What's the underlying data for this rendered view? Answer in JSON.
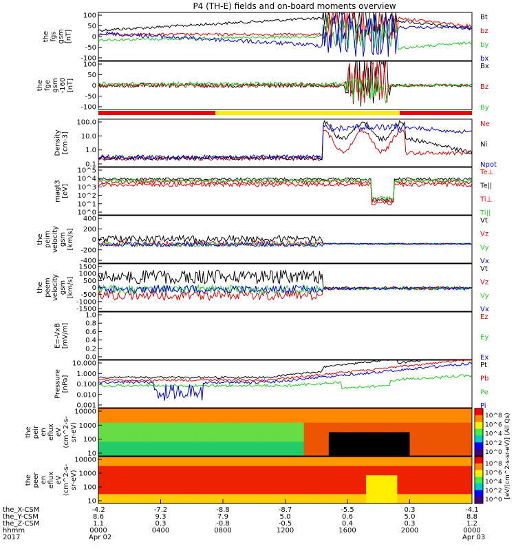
{
  "title": "P4 (TH-E) fields and on-board moments overview",
  "chart_data": {
    "type": "line",
    "title": "P4 (TH-E) fields and on-board moments overview",
    "panels": [
      {
        "id": "fgs",
        "ylabel": [
          "the",
          "fgs",
          "gsm",
          "[nT]"
        ],
        "yticks": [
          "100",
          "50",
          "0",
          "-50",
          "-100"
        ],
        "series": [
          {
            "name": "Bt",
            "color": "#000000"
          },
          {
            "name": "bz",
            "color": "#dd0000"
          },
          {
            "name": "by",
            "color": "#22cc22"
          },
          {
            "name": "bx",
            "color": "#0000dd"
          }
        ]
      },
      {
        "id": "fge",
        "ylabel": [
          "the",
          "fge",
          "gsm",
          "-160",
          "[nT]"
        ],
        "yticks": [
          "100",
          "50",
          "0",
          "-50",
          "-100"
        ],
        "series": [
          {
            "name": "Bx",
            "color": "#000000"
          },
          {
            "name": "Bz",
            "color": "#dd0000"
          },
          {
            "name": "By",
            "color": "#22cc22"
          }
        ]
      },
      {
        "id": "density",
        "ylabel": [
          "Density",
          "[cm-3]"
        ],
        "yticks": [
          "100.0",
          "10.0",
          "1.0",
          "0.1"
        ],
        "series": [
          {
            "name": "Ne",
            "color": "#dd0000"
          },
          {
            "name": "Ni",
            "color": "#000000"
          },
          {
            "name": "Npot",
            "color": "#0000dd"
          }
        ]
      },
      {
        "id": "temp",
        "ylabel": [
          "magt3",
          "[eV]"
        ],
        "yticks": [
          "10^5",
          "10^4",
          "10^3",
          "10^2",
          "10^1",
          "10^0"
        ],
        "series": [
          {
            "name": "Te⊥",
            "color": "#dd0000"
          },
          {
            "name": "Te||",
            "color": "#000000"
          },
          {
            "name": "Ti⊥",
            "color": "#dd0000"
          },
          {
            "name": "Ti||",
            "color": "#22cc22"
          }
        ]
      },
      {
        "id": "peim",
        "ylabel": [
          "the",
          "peim",
          "velocity",
          "gsm",
          "[km/s]"
        ],
        "yticks": [
          "400",
          "200",
          "0",
          "-200",
          "-400"
        ],
        "series": [
          {
            "name": "Vt",
            "color": "#000000"
          },
          {
            "name": "Vz",
            "color": "#dd0000"
          },
          {
            "name": "Vy",
            "color": "#22cc22"
          },
          {
            "name": "Vx",
            "color": "#0000dd"
          }
        ]
      },
      {
        "id": "peem",
        "ylabel": [
          "the",
          "peem",
          "velocity",
          "gsm",
          "[km/s]"
        ],
        "yticks": [
          "1500",
          "1000",
          "500",
          "0",
          "-500",
          "-1000",
          "-1500"
        ],
        "series": [
          {
            "name": "Vt",
            "color": "#000000"
          },
          {
            "name": "Vz",
            "color": "#dd0000"
          },
          {
            "name": "Vy",
            "color": "#22cc22"
          },
          {
            "name": "Vx",
            "color": "#0000dd"
          }
        ]
      },
      {
        "id": "efield",
        "ylabel": [
          "E=-VxB",
          "[mV/m]"
        ],
        "yticks": [
          "1.0",
          "0.8",
          "0.6",
          "0.4",
          "0.2",
          "0.0"
        ],
        "series": [
          {
            "name": "Ez",
            "color": "#dd0000"
          },
          {
            "name": "Ey",
            "color": "#22cc22"
          },
          {
            "name": "Ex",
            "color": "#0000dd"
          }
        ]
      },
      {
        "id": "pressure",
        "ylabel": [
          "Pressure",
          "[nPa]"
        ],
        "yticks": [
          "10.000",
          "1.000",
          "0.100",
          "0.010",
          "0.001"
        ],
        "series": [
          {
            "name": "Pt",
            "color": "#000000"
          },
          {
            "name": "Pb",
            "color": "#dd0000"
          },
          {
            "name": "Pe",
            "color": "#22cc22"
          },
          {
            "name": "Pi",
            "color": "#0000dd"
          }
        ]
      },
      {
        "id": "peir",
        "ylabel": [
          "the",
          "peir",
          "en",
          "eflux",
          "eV",
          "(cm^2-s-",
          "sr-eV)"
        ],
        "yticks": [
          "10000",
          "1000",
          "100",
          "10"
        ]
      },
      {
        "id": "peer",
        "ylabel": [
          "the",
          "peer",
          "en",
          "eflux",
          "eV",
          "(cm^2-s-",
          "sr-eV)"
        ],
        "yticks": [
          "10000",
          "1000",
          "100",
          "10"
        ]
      }
    ],
    "colorbar": {
      "label": "[eV/(cm^2-s-sr-eV)] (All Qs)",
      "ticks": [
        "10^8",
        "10^6",
        "10^4",
        "10^2",
        "10^0"
      ]
    },
    "x_axis": {
      "row_labels": [
        "the_X-CSM",
        "the_Y-CSM",
        "the_Z-CSM",
        "hhmm",
        "2017"
      ],
      "ticks": [
        {
          "x": "-4.2",
          "y": "8.6",
          "z": "1.1",
          "hhmm": "0000",
          "date": "Apr 02"
        },
        {
          "x": "-7.2",
          "y": "9.3",
          "z": "0.3",
          "hhmm": "0400",
          "date": ""
        },
        {
          "x": "-8.8",
          "y": "7.9",
          "z": "-0.8",
          "hhmm": "0800",
          "date": ""
        },
        {
          "x": "-8.7",
          "y": "5.0",
          "z": "-0.5",
          "hhmm": "1200",
          "date": ""
        },
        {
          "x": "-5.5",
          "y": "0.6",
          "z": "0.4",
          "hhmm": "1600",
          "date": ""
        },
        {
          "x": "0.3",
          "y": "5.0",
          "z": "0.3",
          "hhmm": "2000",
          "date": ""
        },
        {
          "x": "-4.1",
          "y": "8.8",
          "z": "1.2",
          "hhmm": "0000",
          "date": "Apr 03"
        }
      ]
    }
  }
}
